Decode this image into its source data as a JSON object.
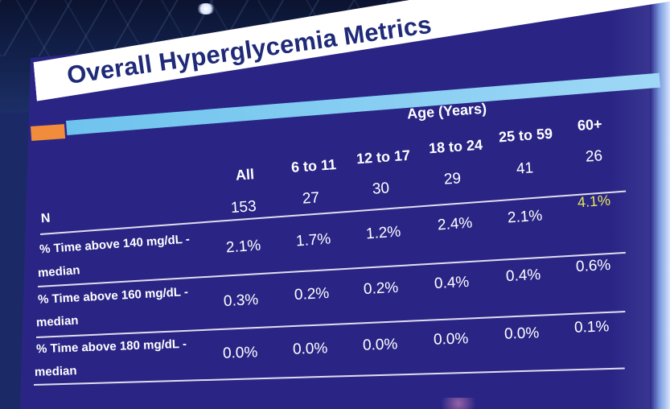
{
  "slide": {
    "title": "Overall Hyperglycemia Metrics",
    "group_header": "Age (Years)",
    "columns": [
      "All",
      "6 to 11",
      "12 to 17",
      "18 to 24",
      "25 to 59",
      "60+"
    ],
    "n_label": "N",
    "n_values": [
      "153",
      "27",
      "30",
      "29",
      "41",
      "26"
    ],
    "rows": [
      {
        "label_line1": "% Time above 140 mg/dL -",
        "label_line2": "median",
        "values": [
          "2.1%",
          "1.7%",
          "1.2%",
          "2.4%",
          "2.1%",
          "4.1%"
        ]
      },
      {
        "label_line1": "% Time above 160 mg/dL -",
        "label_line2": "median",
        "values": [
          "0.3%",
          "0.2%",
          "0.2%",
          "0.4%",
          "0.4%",
          "0.6%"
        ]
      },
      {
        "label_line1": "% Time above 180 mg/dL -",
        "label_line2": "median",
        "values": [
          "0.0%",
          "0.0%",
          "0.0%",
          "0.0%",
          "0.0%",
          "0.1%"
        ]
      }
    ],
    "highlight_color": "#e6e65a",
    "title_color": "#1f2a78",
    "accent_orange": "#f08c3c",
    "accent_blue": "#6ec3ee"
  }
}
